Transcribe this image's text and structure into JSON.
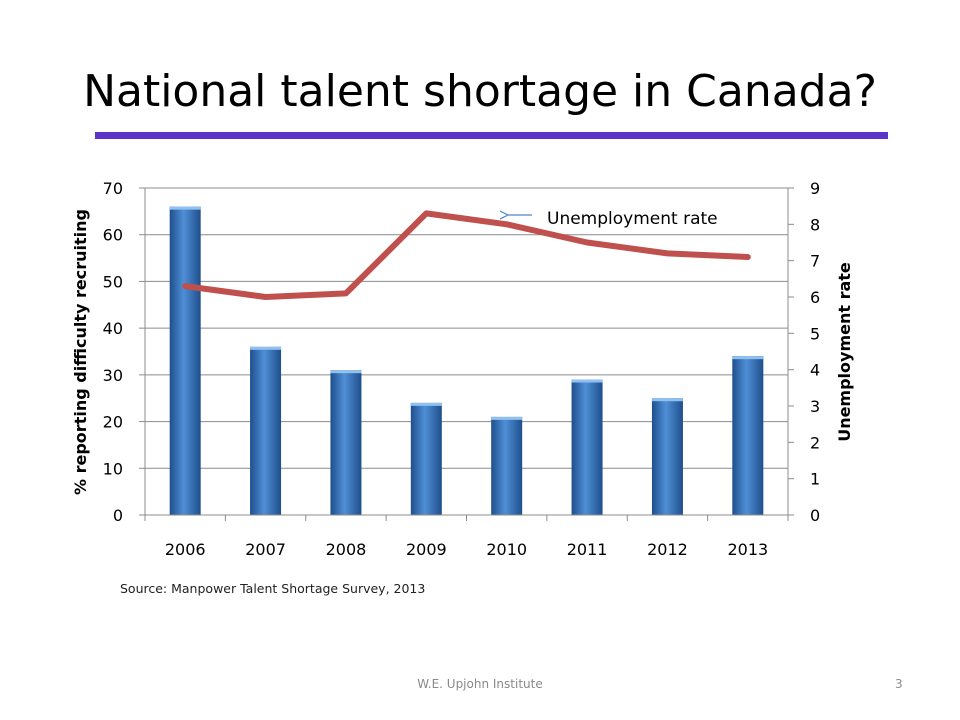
{
  "slide": {
    "title": "National talent shortage in Canada?",
    "source": "Source: Manpower Talent Shortage Survey, 2013",
    "footer": "W.E. Upjohn Institute",
    "page_number": "3",
    "rule_color": "#5a35c9"
  },
  "chart_data": {
    "type": "bar",
    "categories": [
      "2006",
      "2007",
      "2008",
      "2009",
      "2010",
      "2011",
      "2012",
      "2013"
    ],
    "series": [
      {
        "type": "bar",
        "axis": "left",
        "color": "#4a86cc",
        "values": [
          66,
          36,
          31,
          24,
          21,
          29,
          25,
          34
        ]
      },
      {
        "name": "Unemployment rate",
        "type": "line",
        "axis": "right",
        "color": "#c0504d",
        "values": [
          6.3,
          6.0,
          6.1,
          8.3,
          8.0,
          7.5,
          7.2,
          7.1
        ]
      }
    ],
    "ylabel": "% reporting difficulty recruiting",
    "ylim": [
      0,
      70
    ],
    "yticks": [
      "0",
      "10",
      "20",
      "30",
      "40",
      "50",
      "60",
      "70"
    ],
    "y2label": "Unemployment rate",
    "y2lim": [
      0,
      9
    ],
    "y2ticks": [
      "0",
      "1",
      "2",
      "3",
      "4",
      "5",
      "6",
      "7",
      "8",
      "9"
    ],
    "annotation": "Unemployment rate",
    "grid": true
  }
}
